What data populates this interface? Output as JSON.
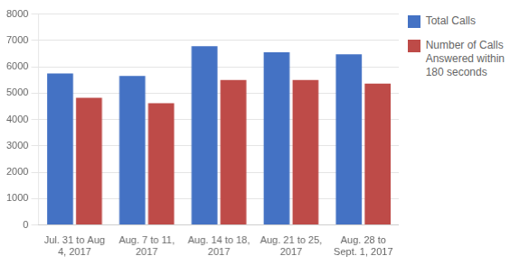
{
  "chart_data": {
    "type": "bar",
    "categories": [
      "Jul. 31 to Aug\n4, 2017",
      "Aug. 7 to 11,\n2017",
      "Aug. 14 to 18,\n2017",
      "Aug. 21 to 25,\n2017",
      "Aug. 28 to\nSept. 1, 2017"
    ],
    "series": [
      {
        "name": "Total Calls",
        "color": "#4472C4",
        "values": [
          5750,
          5650,
          6780,
          6550,
          6470
        ]
      },
      {
        "name": "Number of Calls\nAnswered within\n180 seconds",
        "color": "#BE4B48",
        "values": [
          4820,
          4620,
          5500,
          5500,
          5360
        ]
      }
    ],
    "ylim": [
      0,
      8000
    ],
    "yticks": [
      0,
      1000,
      2000,
      3000,
      4000,
      5000,
      6000,
      7000,
      8000
    ],
    "grid": true,
    "legend": "right"
  }
}
